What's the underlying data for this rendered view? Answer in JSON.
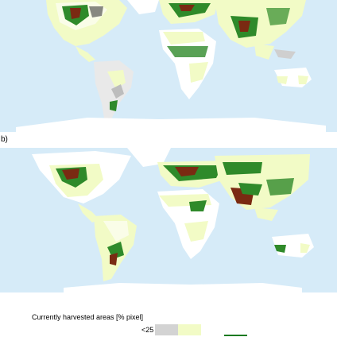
{
  "panel_b_label": "b)",
  "legend": {
    "title": "Currently harvested areas [% pixel]",
    "first_class_label": "<25",
    "swatches": [
      {
        "name": "class-1",
        "color": "#d3d3d3"
      },
      {
        "name": "class-2",
        "color": "#f2fbc6"
      },
      {
        "name": "class-3",
        "color": "#ffffff"
      },
      {
        "name": "class-4",
        "color": "#1a7a20"
      }
    ]
  },
  "colors": {
    "ocean": "#d6ebf8",
    "land_low": "#f2fbc6",
    "land_unused": "#ffffff",
    "harvest_gray": "#cfcfcf",
    "harvest_green": "#2f8a2a",
    "harvest_brown": "#7a2a12"
  }
}
